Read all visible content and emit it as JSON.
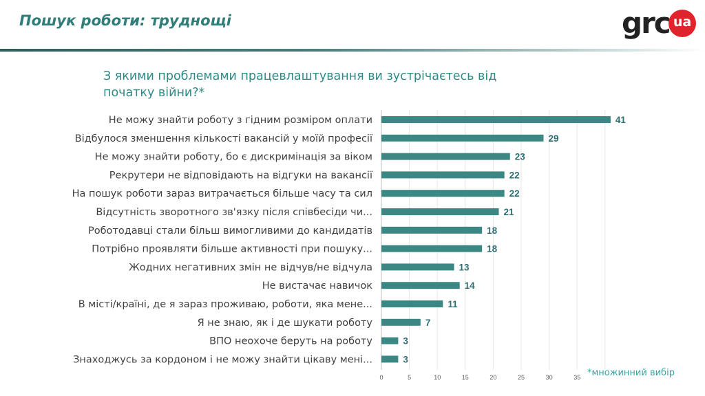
{
  "slide": {
    "title": "Пошук роботи: труднощі",
    "logo_text": "grc",
    "logo_badge": "ua",
    "question": "З якими проблемами працевлаштування ви зустрічаєтесь від початку війни?*",
    "footnote": "*множинний вибір"
  },
  "colors": {
    "title": "#2e7d79",
    "bar": "#3a8784",
    "value_label": "#2f6f73",
    "question": "#2e8a86",
    "footnote": "#36a59f",
    "logo_badge": "#e0242b"
  },
  "chart_data": {
    "type": "bar",
    "orientation": "horizontal",
    "categories": [
      "Не можу знайти роботу з гідним розміром оплати",
      "Відбулося зменшення кількості вакансій у моїй професії",
      "Не можу знайти роботу, бо є дискримінація за віком",
      "Рекрутери не відповідають на відгуки на вакансії",
      "На пошук роботи зараз витрачається більше часу та сил",
      "Відсутність зворотного зв'язку після співбесіди чи...",
      "Роботодавці стали більш вимогливими до кандидатів",
      "Потрібно проявляти більше активності при пошуку...",
      "Жодних негативних змін не відчув/не відчула",
      "Не вистачає навичок",
      "В місті/країні, де я зараз проживаю, роботи, яка мене...",
      "Я не знаю, як і де шукати роботу",
      "ВПО неохоче беруть на роботу",
      "Знаходжусь за кордоном і не можу знайти цікаву мені..."
    ],
    "values": [
      41,
      29,
      23,
      22,
      22,
      21,
      18,
      18,
      13,
      14,
      11,
      7,
      3,
      3
    ],
    "xticks": [
      0,
      5,
      10,
      15,
      20,
      25,
      30,
      35
    ],
    "xlim": [
      0,
      40
    ],
    "grid": true,
    "data_labels": true
  }
}
